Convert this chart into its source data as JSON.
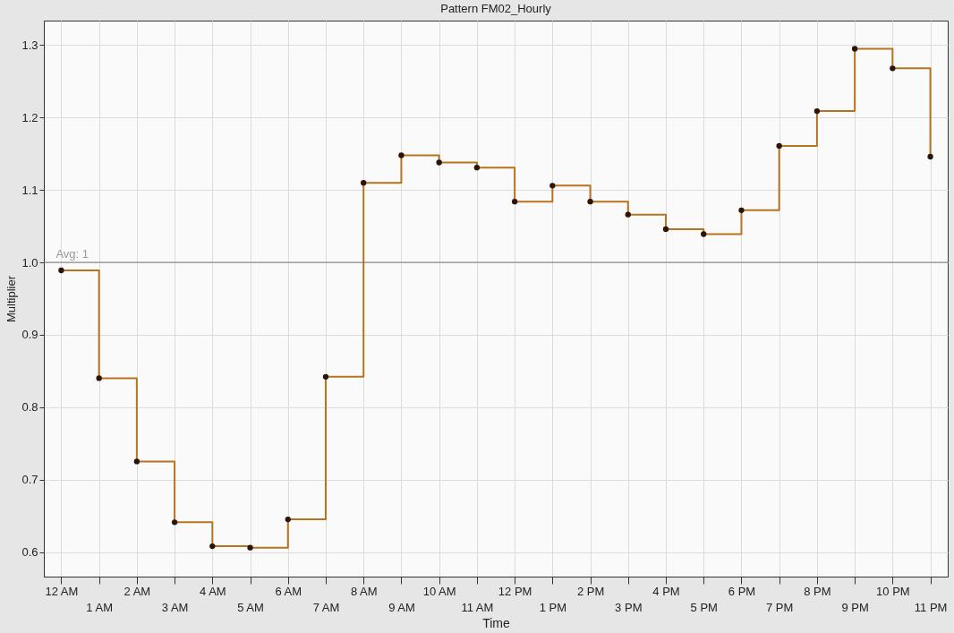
{
  "chart_data": {
    "type": "step",
    "title": "Pattern FM02_Hourly",
    "xlabel": "Time",
    "ylabel": "Multiplier",
    "categories": [
      "12 AM",
      "1 AM",
      "2 AM",
      "3 AM",
      "4 AM",
      "5 AM",
      "6 AM",
      "7 AM",
      "8 AM",
      "9 AM",
      "10 AM",
      "11 AM",
      "12 PM",
      "1 PM",
      "2 PM",
      "3 PM",
      "4 PM",
      "5 PM",
      "6 PM",
      "7 PM",
      "8 PM",
      "9 PM",
      "10 PM",
      "11 PM"
    ],
    "series": [
      {
        "color": "#b8731f",
        "values": [
          0.989,
          0.84,
          0.725,
          0.641,
          0.608,
          0.606,
          0.645,
          0.842,
          1.11,
          1.148,
          1.138,
          1.131,
          1.084,
          1.106,
          1.084,
          1.066,
          1.046,
          1.039,
          1.072,
          1.161,
          1.209,
          1.295,
          1.268,
          1.146
        ]
      }
    ],
    "ylim": [
      0.566,
      1.334
    ],
    "yticks": [
      {
        "value": 0.6,
        "label": "0.6"
      },
      {
        "value": 0.7,
        "label": "0.7"
      },
      {
        "value": 0.8,
        "label": "0.8"
      },
      {
        "value": 0.9,
        "label": "0.9"
      },
      {
        "value": 1.0,
        "label": "1.0"
      },
      {
        "value": 1.1,
        "label": "1.1"
      },
      {
        "value": 1.2,
        "label": "1.2"
      },
      {
        "value": 1.3,
        "label": "1.3"
      }
    ],
    "ref_lines": [
      {
        "axis": "y",
        "value": 1,
        "label": "Avg: 1",
        "color": "#777777"
      }
    ],
    "grid": true,
    "marker": "circle"
  }
}
